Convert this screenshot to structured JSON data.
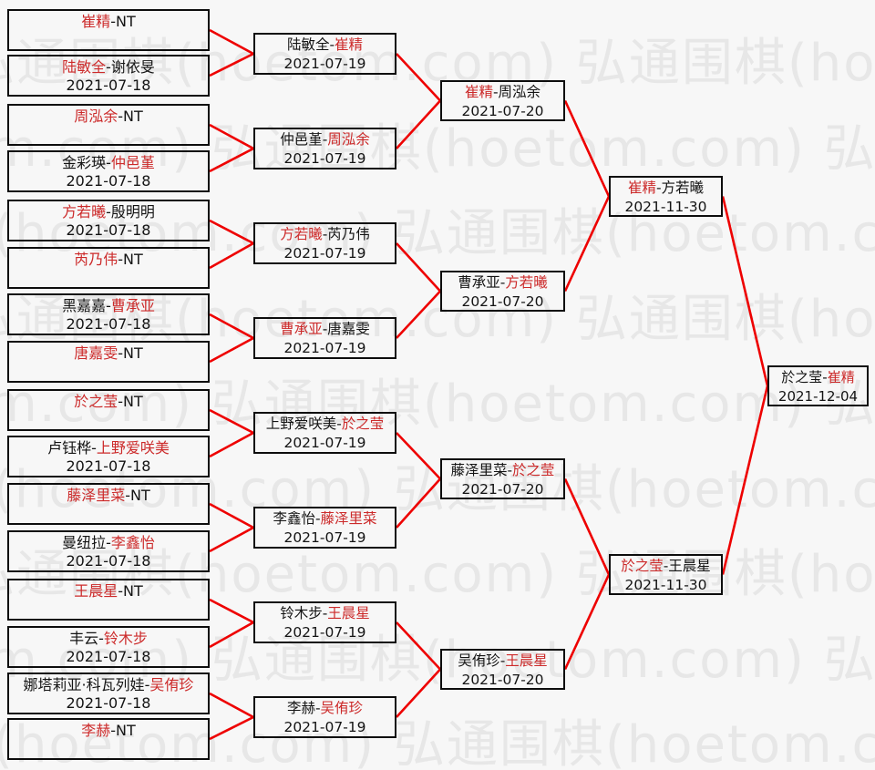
{
  "watermark": {
    "text": "弘通围棋(hoetom.com)"
  },
  "colors": {
    "winner_text": "#cc2a2a",
    "connector_line": "#ee0000",
    "box_border": "#0d0d0d",
    "normal_text": "#141414",
    "watermark_text": "#e7e7e7",
    "background": "#f7f7f7"
  },
  "bracket": {
    "rounds": [
      {
        "id": "round-of-16",
        "matches": [
          {
            "left": "崔精",
            "right": "NT",
            "winner": "left",
            "date": ""
          },
          {
            "left": "陆敏全",
            "right": "谢依旻",
            "winner": "left",
            "date": "2021-07-18"
          },
          {
            "left": "周泓余",
            "right": "NT",
            "winner": "left",
            "date": ""
          },
          {
            "left": "金彩瑛",
            "right": "仲邑堇",
            "winner": "right",
            "date": "2021-07-18"
          },
          {
            "left": "方若曦",
            "right": "殷明明",
            "winner": "left",
            "date": "2021-07-18"
          },
          {
            "left": "芮乃伟",
            "right": "NT",
            "winner": "left",
            "date": ""
          },
          {
            "left": "黑嘉嘉",
            "right": "曹承亚",
            "winner": "right",
            "date": "2021-07-18"
          },
          {
            "left": "唐嘉雯",
            "right": "NT",
            "winner": "left",
            "date": ""
          },
          {
            "left": "於之莹",
            "right": "NT",
            "winner": "left",
            "date": ""
          },
          {
            "left": "卢钰桦",
            "right": "上野爱咲美",
            "winner": "right",
            "date": "2021-07-18"
          },
          {
            "left": "藤泽里菜",
            "right": "NT",
            "winner": "left",
            "date": ""
          },
          {
            "left": "曼纽拉",
            "right": "李鑫怡",
            "winner": "right",
            "date": "2021-07-18"
          },
          {
            "left": "王晨星",
            "right": "NT",
            "winner": "left",
            "date": ""
          },
          {
            "left": "丰云",
            "right": "铃木步",
            "winner": "right",
            "date": "2021-07-18"
          },
          {
            "left": "娜塔莉亚·科瓦列娃",
            "right": "吴侑珍",
            "winner": "right",
            "date": "2021-07-18"
          },
          {
            "left": "李赫",
            "right": "NT",
            "winner": "left",
            "date": ""
          }
        ]
      },
      {
        "id": "round-of-8",
        "matches": [
          {
            "left": "陆敏全",
            "right": "崔精",
            "winner": "right",
            "date": "2021-07-19"
          },
          {
            "left": "仲邑堇",
            "right": "周泓余",
            "winner": "right",
            "date": "2021-07-19"
          },
          {
            "left": "方若曦",
            "right": "芮乃伟",
            "winner": "left",
            "date": "2021-07-19"
          },
          {
            "left": "曹承亚",
            "right": "唐嘉雯",
            "winner": "left",
            "date": "2021-07-19"
          },
          {
            "left": "上野爱咲美",
            "right": "於之莹",
            "winner": "right",
            "date": "2021-07-19"
          },
          {
            "left": "李鑫怡",
            "right": "藤泽里菜",
            "winner": "right",
            "date": "2021-07-19"
          },
          {
            "left": "铃木步",
            "right": "王晨星",
            "winner": "right",
            "date": "2021-07-19"
          },
          {
            "left": "李赫",
            "right": "吴侑珍",
            "winner": "right",
            "date": "2021-07-19"
          }
        ]
      },
      {
        "id": "quarterfinals",
        "matches": [
          {
            "left": "崔精",
            "right": "周泓余",
            "winner": "left",
            "date": "2021-07-20"
          },
          {
            "left": "曹承亚",
            "right": "方若曦",
            "winner": "right",
            "date": "2021-07-20"
          },
          {
            "left": "藤泽里菜",
            "right": "於之莹",
            "winner": "right",
            "date": "2021-07-20"
          },
          {
            "left": "吴侑珍",
            "right": "王晨星",
            "winner": "right",
            "date": "2021-07-20"
          }
        ]
      },
      {
        "id": "semifinals",
        "matches": [
          {
            "left": "崔精",
            "right": "方若曦",
            "winner": "left",
            "date": "2021-11-30"
          },
          {
            "left": "於之莹",
            "right": "王晨星",
            "winner": "left",
            "date": "2021-11-30"
          }
        ]
      },
      {
        "id": "final",
        "matches": [
          {
            "left": "於之莹",
            "right": "崔精",
            "winner": "right",
            "date": "2021-12-04"
          }
        ]
      }
    ]
  }
}
